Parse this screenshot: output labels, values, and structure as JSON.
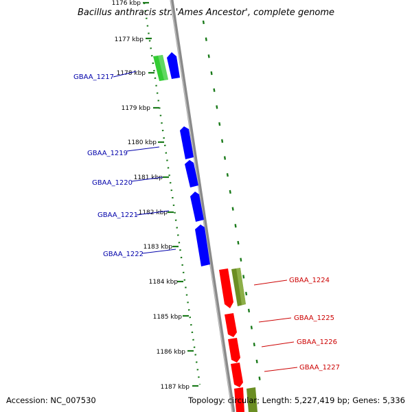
{
  "title": "Bacillus anthracis str. 'Ames Ancestor', complete genome",
  "accession": "Accession: NC_007530",
  "topology": "Topology: circular; Length: 5,227,419 bp; Genes: 5,336",
  "ruler": {
    "unit": "kbp",
    "ticks": [
      {
        "label": "1176 kbp",
        "kbp": 1176
      },
      {
        "label": "1177 kbp",
        "kbp": 1177
      },
      {
        "label": "1178 kbp",
        "kbp": 1178
      },
      {
        "label": "1179 kbp",
        "kbp": 1179
      },
      {
        "label": "1180 kbp",
        "kbp": 1180
      },
      {
        "label": "1181 kbp",
        "kbp": 1181
      },
      {
        "label": "1182 kbp",
        "kbp": 1182
      },
      {
        "label": "1183 kbp",
        "kbp": 1183
      },
      {
        "label": "1184 kbp",
        "kbp": 1184
      },
      {
        "label": "1185 kbp",
        "kbp": 1185
      },
      {
        "label": "1186 kbp",
        "kbp": 1186
      },
      {
        "label": "1187 kbp",
        "kbp": 1187
      }
    ]
  },
  "colors": {
    "forward_cds": "#0000ff",
    "reverse_cds": "#ff0000",
    "forward_gene": "#33cc33",
    "reverse_gene": "#6b8e23",
    "backbone": "#8a8a8a",
    "ruler": "#1a7a1a",
    "forward_label": "#0000aa",
    "reverse_label": "#cc0000",
    "text": "#000000"
  },
  "gene_labels": [
    {
      "text": "GBAA_1217",
      "strand": "forward"
    },
    {
      "text": "GBAA_1219",
      "strand": "forward"
    },
    {
      "text": "GBAA_1220",
      "strand": "forward"
    },
    {
      "text": "GBAA_1221",
      "strand": "forward"
    },
    {
      "text": "GBAA_1222",
      "strand": "forward"
    },
    {
      "text": "GBAA_1224",
      "strand": "reverse"
    },
    {
      "text": "GBAA_1225",
      "strand": "reverse"
    },
    {
      "text": "GBAA_1226",
      "strand": "reverse"
    },
    {
      "text": "GBAA_1227",
      "strand": "reverse"
    }
  ]
}
